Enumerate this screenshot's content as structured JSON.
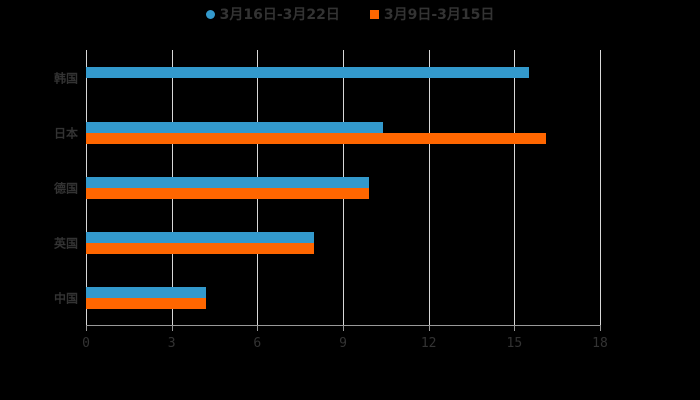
{
  "legend": [
    {
      "label": "3月16日-3月22日",
      "color": "#3399cc",
      "shape": "circle"
    },
    {
      "label": "3月9日-3月15日",
      "color": "#ff6600",
      "shape": "square"
    }
  ],
  "chart_data": {
    "type": "bar",
    "orientation": "horizontal",
    "categories": [
      "韩国",
      "日本",
      "德国",
      "英国",
      "中国"
    ],
    "series": [
      {
        "name": "3月16日-3月22日",
        "color": "#3399cc",
        "values": [
          15.5,
          10.4,
          9.9,
          8.0,
          4.2
        ]
      },
      {
        "name": "3月9日-3月15日",
        "color": "#ff6600",
        "values": [
          null,
          16.1,
          9.9,
          8.0,
          4.2
        ]
      }
    ],
    "xlim": [
      0,
      18
    ],
    "xticks": [
      "0",
      "3",
      "6",
      "9",
      "12",
      "15",
      "18"
    ],
    "grid": true,
    "legend_position": "top"
  }
}
